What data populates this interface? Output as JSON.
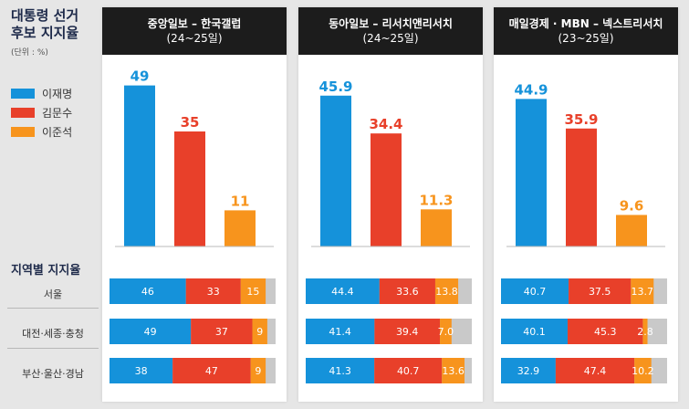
{
  "side": {
    "title_line1": "대통령 선거",
    "title_line2": "후보 지지율",
    "unit": "(단위 : %)",
    "region_title": "지역별 지지율"
  },
  "legend": [
    {
      "name": "이재명",
      "color": "#1592da"
    },
    {
      "name": "김문수",
      "color": "#e8402a"
    },
    {
      "name": "이준석",
      "color": "#f7941d"
    }
  ],
  "regions": [
    "서울",
    "대전·세종·충청",
    "부산·울산·경남"
  ],
  "polls": [
    {
      "title": "중앙일보 – 한국갤럽",
      "period": "(24~25일)"
    },
    {
      "title": "동아일보 – 리서치앤리서치",
      "period": "(24~25일)"
    },
    {
      "title": "매일경제 · MBN – 넥스트리서치",
      "period": "(23~25일)"
    }
  ],
  "chart_data": [
    {
      "type": "bar",
      "categories": [
        "이재명",
        "김문수",
        "이준석"
      ],
      "values": [
        49,
        35,
        11
      ],
      "ylim": [
        0,
        55
      ],
      "regional": {
        "type": "stacked-bar",
        "categories": [
          "서울",
          "대전·세종·충청",
          "부산·울산·경남"
        ],
        "series": [
          {
            "name": "이재명",
            "values": [
              46,
              49,
              38
            ]
          },
          {
            "name": "김문수",
            "values": [
              33,
              37,
              47
            ]
          },
          {
            "name": "이준석",
            "values": [
              15,
              9,
              9
            ]
          }
        ],
        "labels": [
          [
            "46",
            "33",
            "15"
          ],
          [
            "49",
            "37",
            "9"
          ],
          [
            "38",
            "47",
            "9"
          ]
        ],
        "xlim": [
          0,
          100
        ]
      }
    },
    {
      "type": "bar",
      "categories": [
        "이재명",
        "김문수",
        "이준석"
      ],
      "values": [
        45.9,
        34.4,
        11.3
      ],
      "ylim": [
        0,
        55
      ],
      "regional": {
        "type": "stacked-bar",
        "categories": [
          "서울",
          "대전·세종·충청",
          "부산·울산·경남"
        ],
        "series": [
          {
            "name": "이재명",
            "values": [
              44.4,
              41.4,
              41.3
            ]
          },
          {
            "name": "김문수",
            "values": [
              33.6,
              39.4,
              40.7
            ]
          },
          {
            "name": "이준석",
            "values": [
              13.8,
              7.0,
              13.6
            ]
          }
        ],
        "labels": [
          [
            "44.4",
            "33.6",
            "13.8"
          ],
          [
            "41.4",
            "39.4",
            "7.0"
          ],
          [
            "41.3",
            "40.7",
            "13.6"
          ]
        ],
        "xlim": [
          0,
          100
        ]
      }
    },
    {
      "type": "bar",
      "categories": [
        "이재명",
        "김문수",
        "이준석"
      ],
      "values": [
        44.9,
        35.9,
        9.6
      ],
      "ylim": [
        0,
        55
      ],
      "regional": {
        "type": "stacked-bar",
        "categories": [
          "서울",
          "대전·세종·충청",
          "부산·울산·경남"
        ],
        "series": [
          {
            "name": "이재명",
            "values": [
              40.7,
              40.1,
              32.9
            ]
          },
          {
            "name": "김문수",
            "values": [
              37.5,
              45.3,
              47.4
            ]
          },
          {
            "name": "이준석",
            "values": [
              13.7,
              2.8,
              10.2
            ]
          }
        ],
        "labels": [
          [
            "40.7",
            "37.5",
            "13.7"
          ],
          [
            "40.1",
            "45.3",
            "2.8"
          ],
          [
            "32.9",
            "47.4",
            "10.2"
          ]
        ],
        "xlim": [
          0,
          100
        ]
      }
    }
  ],
  "colors": {
    "rest": "#c9c9c9"
  }
}
